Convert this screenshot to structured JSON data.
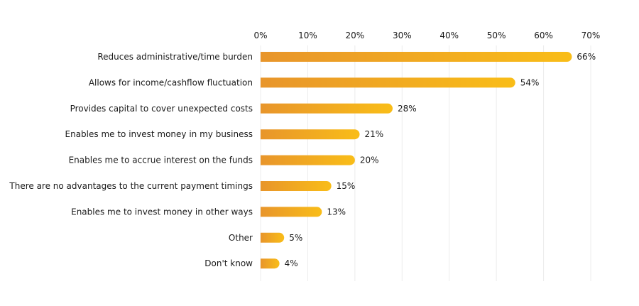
{
  "chart_data": {
    "type": "bar",
    "orientation": "horizontal",
    "categories": [
      "Reduces administrative/time burden",
      "Allows for income/cashflow fluctuation",
      "Provides capital to cover unexpected costs",
      "Enables me to invest money in my business",
      "Enables me to accrue interest on the funds",
      "There are no advantages to the current payment timings",
      "Enables me to invest money in other ways",
      "Other",
      "Don't know"
    ],
    "values": [
      66,
      54,
      28,
      21,
      20,
      15,
      13,
      5,
      4
    ],
    "data_labels": [
      "66%",
      "54%",
      "28%",
      "21%",
      "20%",
      "15%",
      "13%",
      "5%",
      "4%"
    ],
    "xlim": [
      0,
      70
    ],
    "xticks": [
      "0%",
      "10%",
      "20%",
      "30%",
      "40%",
      "50%",
      "60%",
      "70%"
    ],
    "xaxis_position": "top",
    "grid": true,
    "colors": {
      "bar_start": "#e8952b",
      "bar_end": "#f9bd18",
      "grid": "#ececec",
      "text": "#1a1a1a"
    }
  }
}
